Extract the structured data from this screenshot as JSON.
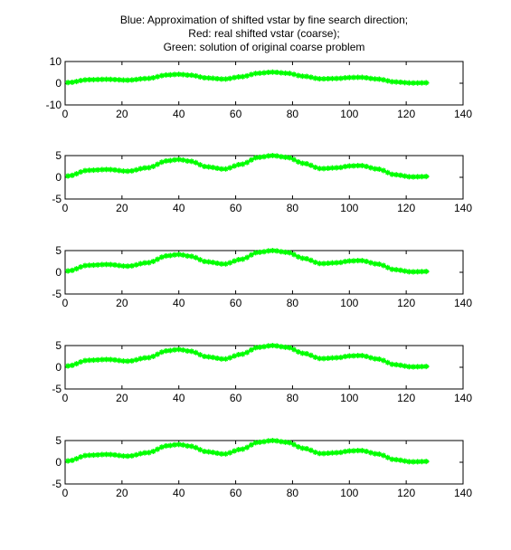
{
  "figure": {
    "title_lines": [
      "Blue: Approximation of shifted vstar by fine search direction;",
      "Red: real shifted vstar (coarse);",
      "Green: solution of original coarse problem"
    ]
  },
  "colors": {
    "blue_series": "#0000ff",
    "red_series": "#ff0000",
    "green_series": "#00ff00",
    "axes": "#000000",
    "background": "#ffffff"
  },
  "chart_data": [
    {
      "type": "line",
      "xlim": [
        0,
        140
      ],
      "ylim": [
        -10,
        10
      ],
      "xticks": [
        0,
        20,
        40,
        60,
        80,
        100,
        120,
        140
      ],
      "yticks": [
        -10,
        0,
        10
      ],
      "grid": false,
      "x": [
        1,
        8,
        15,
        22,
        29,
        36,
        40,
        44,
        50,
        56,
        62,
        68,
        73,
        78,
        84,
        90,
        96,
        100,
        104,
        110,
        116,
        122,
        128
      ],
      "series": [
        {
          "values": [
            0.3,
            1.6,
            1.8,
            1.4,
            2.2,
            3.8,
            4.1,
            3.7,
            2.4,
            1.9,
            3.0,
            4.6,
            5.1,
            4.6,
            3.2,
            2.0,
            2.2,
            2.6,
            2.7,
            1.9,
            0.6,
            0.1,
            0.2
          ]
        },
        {
          "values": [
            0.3,
            1.7,
            1.9,
            1.3,
            2.1,
            3.7,
            4.2,
            3.6,
            2.3,
            1.8,
            2.9,
            4.5,
            5.0,
            4.7,
            3.1,
            1.9,
            2.1,
            2.5,
            2.8,
            1.8,
            0.5,
            0.0,
            0.1
          ]
        },
        {
          "values": [
            0.3,
            1.6,
            1.8,
            1.4,
            2.2,
            3.8,
            4.1,
            3.7,
            2.4,
            1.9,
            3.0,
            4.6,
            5.1,
            4.6,
            3.2,
            2.0,
            2.2,
            2.6,
            2.7,
            1.9,
            0.6,
            0.1,
            0.2
          ]
        }
      ]
    },
    {
      "type": "line",
      "xlim": [
        0,
        140
      ],
      "ylim": [
        -5,
        5
      ],
      "xticks": [
        0,
        20,
        40,
        60,
        80,
        100,
        120,
        140
      ],
      "yticks": [
        -5,
        0,
        5
      ],
      "grid": false,
      "x": [
        1,
        8,
        15,
        22,
        29,
        36,
        40,
        44,
        50,
        56,
        62,
        68,
        73,
        78,
        84,
        90,
        96,
        100,
        104,
        110,
        116,
        122,
        128
      ],
      "series": [
        {
          "values": [
            0.3,
            1.6,
            1.8,
            1.4,
            2.2,
            3.8,
            4.1,
            3.7,
            2.4,
            1.9,
            3.0,
            4.6,
            5.0,
            4.6,
            3.2,
            2.0,
            2.2,
            2.6,
            2.7,
            1.9,
            0.6,
            0.1,
            0.2
          ]
        },
        {
          "values": [
            0.3,
            1.7,
            1.9,
            1.3,
            2.1,
            3.7,
            4.2,
            3.6,
            2.3,
            1.8,
            2.9,
            4.5,
            4.9,
            4.7,
            3.1,
            1.9,
            2.1,
            2.5,
            2.8,
            1.8,
            0.5,
            0.0,
            0.1
          ]
        },
        {
          "values": [
            0.3,
            1.6,
            1.8,
            1.4,
            2.2,
            3.8,
            4.1,
            3.7,
            2.4,
            1.9,
            3.0,
            4.6,
            5.0,
            4.6,
            3.2,
            2.0,
            2.2,
            2.6,
            2.7,
            1.9,
            0.6,
            0.1,
            0.2
          ]
        }
      ]
    },
    {
      "type": "line",
      "xlim": [
        0,
        140
      ],
      "ylim": [
        -5,
        5
      ],
      "xticks": [
        0,
        20,
        40,
        60,
        80,
        100,
        120,
        140
      ],
      "yticks": [
        -5,
        0,
        5
      ],
      "grid": false,
      "x": [
        1,
        8,
        15,
        22,
        29,
        36,
        40,
        44,
        50,
        56,
        62,
        68,
        73,
        78,
        84,
        90,
        96,
        100,
        104,
        110,
        116,
        122,
        128
      ],
      "series": [
        {
          "values": [
            0.3,
            1.6,
            1.8,
            1.4,
            2.2,
            3.8,
            4.1,
            3.7,
            2.4,
            1.9,
            3.0,
            4.6,
            5.0,
            4.6,
            3.2,
            2.0,
            2.2,
            2.6,
            2.7,
            1.9,
            0.6,
            0.1,
            0.2
          ]
        },
        {
          "values": [
            0.3,
            1.7,
            1.9,
            1.3,
            2.1,
            3.7,
            4.2,
            3.6,
            2.3,
            1.8,
            2.9,
            4.5,
            4.9,
            4.7,
            3.1,
            1.9,
            2.1,
            2.5,
            2.8,
            1.8,
            0.5,
            0.0,
            0.1
          ]
        },
        {
          "values": [
            0.3,
            1.6,
            1.8,
            1.4,
            2.2,
            3.8,
            4.1,
            3.7,
            2.4,
            1.9,
            3.0,
            4.6,
            5.0,
            4.6,
            3.2,
            2.0,
            2.2,
            2.6,
            2.7,
            1.9,
            0.6,
            0.1,
            0.2
          ]
        }
      ]
    },
    {
      "type": "line",
      "xlim": [
        0,
        140
      ],
      "ylim": [
        -5,
        5
      ],
      "xticks": [
        0,
        20,
        40,
        60,
        80,
        100,
        120,
        140
      ],
      "yticks": [
        -5,
        0,
        5
      ],
      "grid": false,
      "x": [
        1,
        8,
        15,
        22,
        29,
        36,
        40,
        44,
        50,
        56,
        62,
        68,
        73,
        78,
        84,
        90,
        96,
        100,
        104,
        110,
        116,
        122,
        128
      ],
      "series": [
        {
          "values": [
            0.3,
            1.6,
            1.8,
            1.4,
            2.2,
            3.8,
            4.1,
            3.7,
            2.4,
            1.9,
            3.0,
            4.6,
            5.0,
            4.6,
            3.2,
            2.0,
            2.2,
            2.6,
            2.7,
            1.9,
            0.6,
            0.1,
            0.2
          ]
        },
        {
          "values": [
            0.3,
            1.7,
            1.9,
            1.3,
            2.1,
            3.7,
            4.2,
            3.6,
            2.3,
            1.8,
            2.9,
            4.5,
            4.9,
            4.7,
            3.1,
            1.9,
            2.1,
            2.5,
            2.8,
            1.8,
            0.5,
            0.0,
            0.1
          ]
        },
        {
          "values": [
            0.3,
            1.6,
            1.8,
            1.4,
            2.2,
            3.8,
            4.1,
            3.7,
            2.4,
            1.9,
            3.0,
            4.6,
            5.0,
            4.6,
            3.2,
            2.0,
            2.2,
            2.6,
            2.7,
            1.9,
            0.6,
            0.1,
            0.2
          ]
        }
      ]
    },
    {
      "type": "line",
      "xlim": [
        0,
        140
      ],
      "ylim": [
        -5,
        5
      ],
      "xticks": [
        0,
        20,
        40,
        60,
        80,
        100,
        120,
        140
      ],
      "yticks": [
        -5,
        0,
        5
      ],
      "grid": false,
      "x": [
        1,
        8,
        15,
        22,
        29,
        36,
        40,
        44,
        50,
        56,
        62,
        68,
        73,
        78,
        84,
        90,
        96,
        100,
        104,
        110,
        116,
        122,
        128
      ],
      "series": [
        {
          "values": [
            0.3,
            1.6,
            1.8,
            1.4,
            2.2,
            3.8,
            4.1,
            3.7,
            2.4,
            1.9,
            3.0,
            4.6,
            5.0,
            4.6,
            3.2,
            2.0,
            2.2,
            2.6,
            2.7,
            1.9,
            0.6,
            0.1,
            0.2
          ]
        },
        {
          "values": [
            0.3,
            1.7,
            1.9,
            1.3,
            2.1,
            3.7,
            4.2,
            3.6,
            2.3,
            1.8,
            2.9,
            4.5,
            4.9,
            4.7,
            3.1,
            1.9,
            2.1,
            2.5,
            2.8,
            1.8,
            0.5,
            0.0,
            0.1
          ]
        },
        {
          "values": [
            0.3,
            1.6,
            1.8,
            1.4,
            2.2,
            3.8,
            4.1,
            3.7,
            2.4,
            1.9,
            3.0,
            4.6,
            5.0,
            4.6,
            3.2,
            2.0,
            2.2,
            2.6,
            2.7,
            1.9,
            0.6,
            0.1,
            0.2
          ]
        }
      ]
    }
  ]
}
